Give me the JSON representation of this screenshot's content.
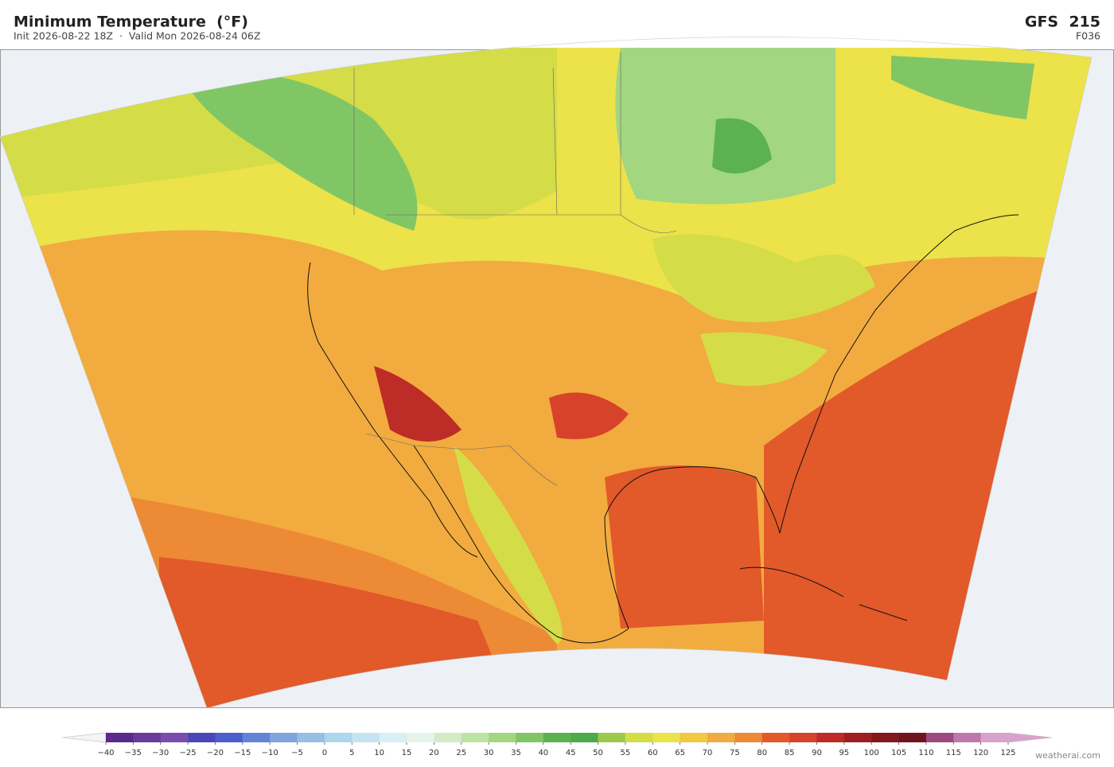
{
  "header": {
    "title": "Minimum Temperature  (°F)",
    "subtitle": "Init 2026-08-22 18Z  ·  Valid Mon 2026-08-24 06Z",
    "model": "GFS  215",
    "forecast_hour": "F036"
  },
  "colorbar": {
    "ticks": [
      {
        "value": -40,
        "label": "−40"
      },
      {
        "value": -35,
        "label": "−35"
      },
      {
        "value": -30,
        "label": "−30"
      },
      {
        "value": -25,
        "label": "−25"
      },
      {
        "value": -20,
        "label": "−20"
      },
      {
        "value": -15,
        "label": "−15"
      },
      {
        "value": -10,
        "label": "−10"
      },
      {
        "value": -5,
        "label": "−5"
      },
      0,
      5,
      10,
      15,
      20,
      25,
      30,
      35,
      40,
      45,
      50,
      55,
      60,
      65,
      70,
      75,
      80,
      85,
      90,
      95,
      100,
      105,
      110,
      115,
      120,
      125
    ],
    "colors": [
      "#5b2a8c",
      "#6b3a9c",
      "#7a4cae",
      "#4b47b8",
      "#4d5fcc",
      "#6284d8",
      "#7ea5dd",
      "#97bfe3",
      "#add5ec",
      "#c4e4f1",
      "#d8eff3",
      "#e6f4ec",
      "#d4ecc6",
      "#bde3a3",
      "#a2d681",
      "#80c665",
      "#5cb150",
      "#4caa4a",
      "#9cc94c",
      "#d4dd48",
      "#ece24a",
      "#f3c843",
      "#f2ab3e",
      "#ec8a35",
      "#e2592a",
      "#d6432a",
      "#bd2c26",
      "#9e1f21",
      "#83191d",
      "#701520",
      "#9c4a80",
      "#bf78ab",
      "#d9a2cc"
    ],
    "under_color": "#f4f4f8",
    "over_color": "#d9a2cc"
  },
  "credit": "weatherai.com"
}
